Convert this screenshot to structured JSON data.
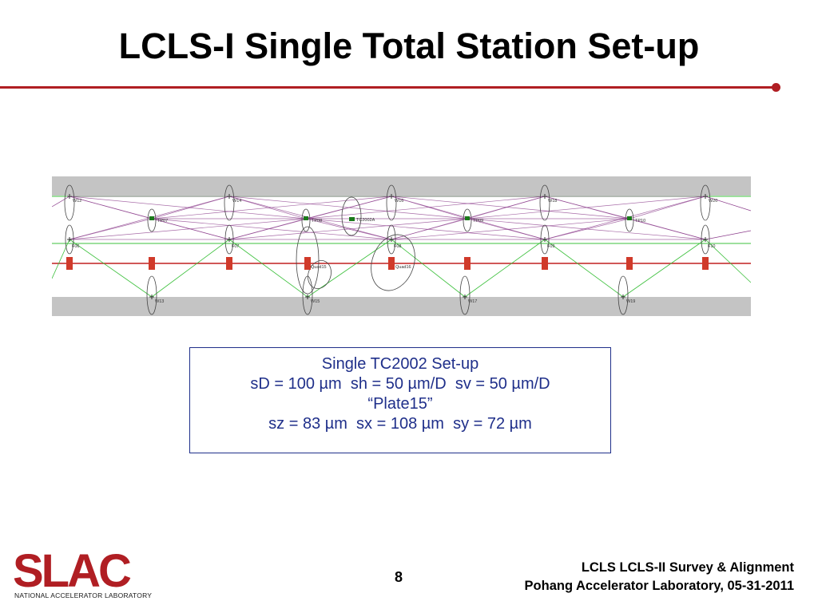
{
  "slide": {
    "title": "LCLS-I Single Total Station Set-up",
    "page_number": "8",
    "footer_line1": "LCLS LCLS-II Survey & Alignment",
    "footer_line2": "Pohang Accelerator Laboratory, 05-31-2011",
    "accent_color": "#b01e23"
  },
  "logo": {
    "text": "SLAC",
    "subtitle": "NATIONAL ACCELERATOR LABORATORY"
  },
  "info_box": {
    "line1": "Single TC2002 Set-up",
    "line2": "sD = 100 µm  sh = 50 µm/D  sv = 50 µm/D",
    "line3": "“Plate15”",
    "line4": "sz = 83 µm  sx = 108 µm  sy = 72 µm",
    "text_color": "#1f2f8a"
  },
  "network": {
    "top_labels": [
      "W12",
      "W14",
      "W16",
      "W18",
      "W20"
    ],
    "upper_tp_labels": [
      "TP07",
      "TP08",
      "TP09",
      "TP10"
    ],
    "instrument_label": "TC2002A",
    "fiducial_labels": [
      "F06",
      "F07",
      "F08",
      "F09",
      "F10"
    ],
    "quad_labels": [
      "Quad15",
      "Quad16"
    ],
    "bottom_labels": [
      "W13",
      "W15",
      "W17",
      "W19"
    ],
    "line_colors": {
      "beam": "#c02020",
      "sight": "#8a3a8a",
      "aux": "#3cc03c"
    }
  }
}
